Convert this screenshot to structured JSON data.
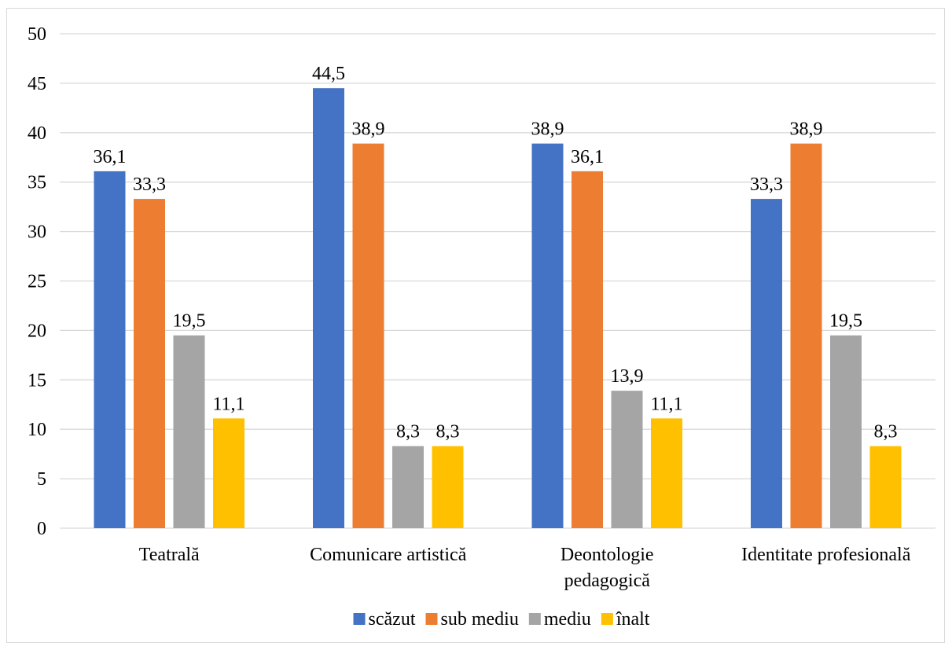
{
  "chart_data": {
    "type": "bar",
    "categories": [
      [
        "Teatrală"
      ],
      [
        "Comunicare artistică"
      ],
      [
        "Deontologie",
        "pedagogică"
      ],
      [
        "Identitate profesională"
      ]
    ],
    "series": [
      {
        "name": "scăzut",
        "color": "#4472c4",
        "values": [
          36.1,
          44.5,
          38.9,
          33.3
        ],
        "labels": [
          "36,1",
          "44,5",
          "38,9",
          "33,3"
        ]
      },
      {
        "name": "sub mediu",
        "color": "#ed7d31",
        "values": [
          33.3,
          38.9,
          36.1,
          38.9
        ],
        "labels": [
          "33,3",
          "38,9",
          "36,1",
          "38,9"
        ]
      },
      {
        "name": "mediu",
        "color": "#a5a5a5",
        "values": [
          19.5,
          8.3,
          13.9,
          19.5
        ],
        "labels": [
          "19,5",
          "8,3",
          "13,9",
          "19,5"
        ]
      },
      {
        "name": "înalt",
        "color": "#ffc000",
        "values": [
          11.1,
          8.3,
          11.1,
          8.3
        ],
        "labels": [
          "11,1",
          "8,3",
          "11,1",
          "8,3"
        ]
      }
    ],
    "ylim": [
      0,
      50
    ],
    "yticks": [
      0,
      5,
      10,
      15,
      20,
      25,
      30,
      35,
      40,
      45,
      50
    ],
    "grid": true,
    "legend": "bottom",
    "title": "",
    "xlabel": "",
    "ylabel": ""
  }
}
